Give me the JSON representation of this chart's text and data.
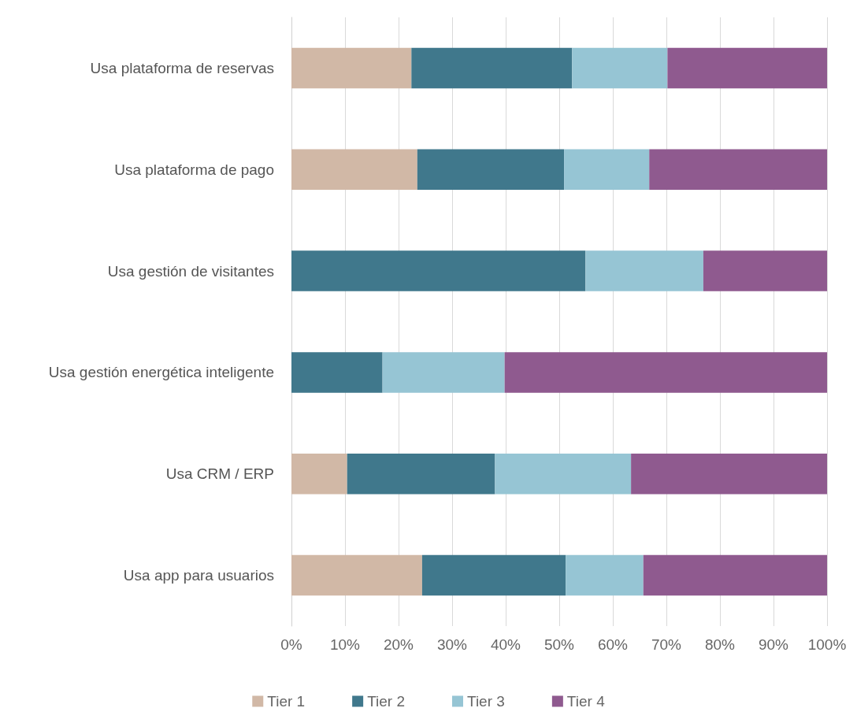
{
  "chart_data": {
    "type": "bar",
    "orientation": "horizontal",
    "stacked": true,
    "categories": [
      "Usa plataforma de reservas",
      "Usa plataforma de pago",
      "Usa gestión de visitantes",
      "Usa gestión energética inteligente",
      "Usa CRM / ERP",
      "Usa app para usuarios"
    ],
    "series": [
      {
        "name": "Tier 1",
        "color": "#d1b8a6",
        "values": [
          22.4,
          23.5,
          0,
          0,
          10.4,
          24.4
        ]
      },
      {
        "name": "Tier 2",
        "color": "#40788c",
        "values": [
          30,
          27.4,
          54.9,
          17,
          27.6,
          26.8
        ]
      },
      {
        "name": "Tier 3",
        "color": "#96c5d4",
        "values": [
          17.8,
          15.9,
          22,
          22.8,
          25.4,
          14.5
        ]
      },
      {
        "name": "Tier 4",
        "color": "#8f5a8f",
        "values": [
          29.8,
          33.2,
          23.1,
          60.2,
          36.6,
          34.3
        ]
      }
    ],
    "xlim": [
      0,
      100
    ],
    "xticks": [
      {
        "value": 0,
        "label": "0%"
      },
      {
        "value": 10,
        "label": "10%"
      },
      {
        "value": 20,
        "label": "20%"
      },
      {
        "value": 30,
        "label": "30%"
      },
      {
        "value": 40,
        "label": "40%"
      },
      {
        "value": 50,
        "label": "50%"
      },
      {
        "value": 60,
        "label": "60%"
      },
      {
        "value": 70,
        "label": "70%"
      },
      {
        "value": 80,
        "label": "80%"
      },
      {
        "value": 90,
        "label": "90%"
      },
      {
        "value": 100,
        "label": "100%"
      }
    ],
    "grid": "x",
    "legend": "bottom"
  }
}
